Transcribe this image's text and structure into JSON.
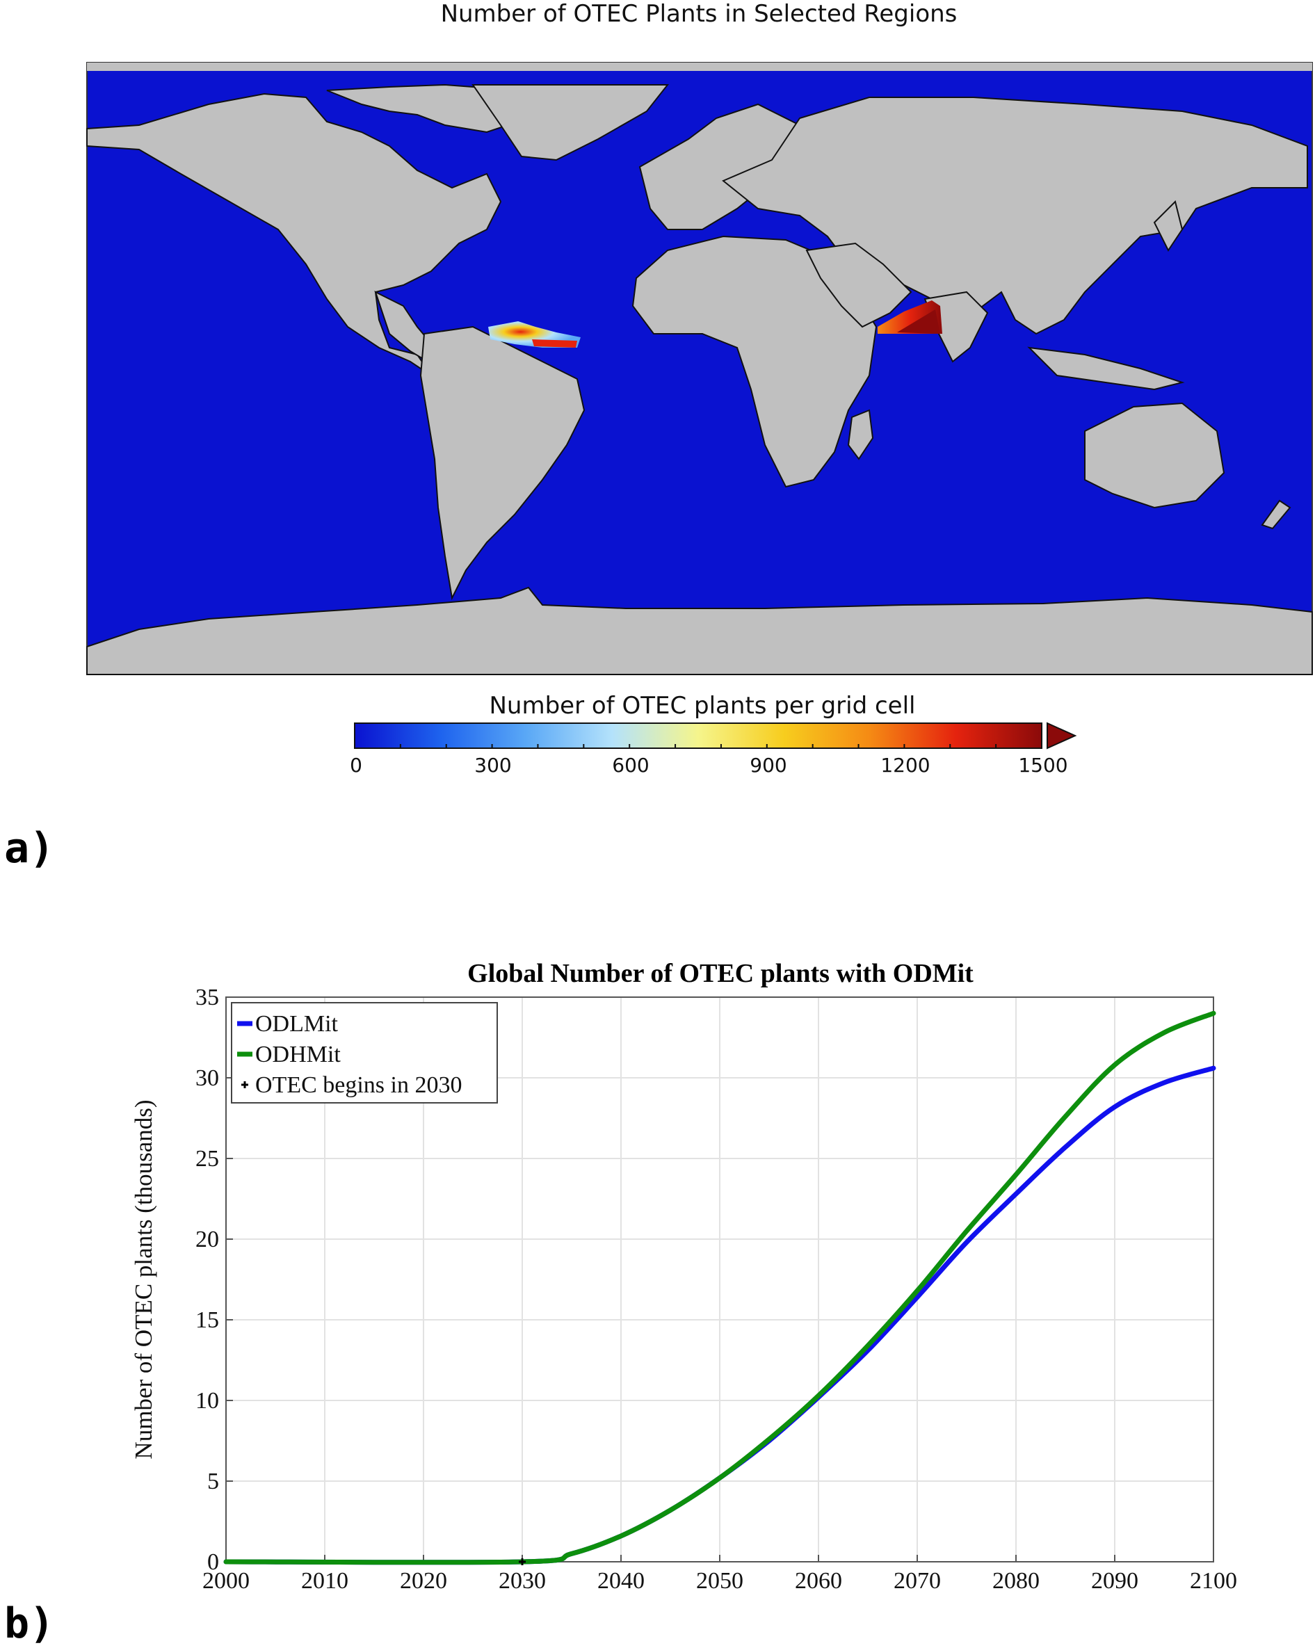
{
  "panel_a": {
    "label": "a)",
    "title": "Number of OTEC Plants in Selected Regions",
    "colors": {
      "ocean": "#0a12d0",
      "land": "#c0c0c0"
    },
    "colorbar": {
      "title": "Number of OTEC plants per grid cell",
      "ticks": [
        "0",
        "300",
        "600",
        "900",
        "1200",
        "1500"
      ],
      "range": [
        0,
        1500
      ],
      "colormap": [
        "#0a12d0",
        "#1e63ee",
        "#5aa8f6",
        "#b4e2fb",
        "#f5f58c",
        "#f7cd1e",
        "#f58a14",
        "#e5230e",
        "#8b0a0a"
      ]
    }
  },
  "panel_b": {
    "label": "b)",
    "chart_data": {
      "type": "line",
      "title": "Global Number of OTEC plants with ODMit",
      "xlabel": "",
      "ylabel": "Number of OTEC plants (thousands)",
      "xlim": [
        2000,
        2100
      ],
      "ylim": [
        0,
        35
      ],
      "xticks": [
        2000,
        2010,
        2020,
        2030,
        2040,
        2050,
        2060,
        2070,
        2080,
        2090,
        2100
      ],
      "yticks": [
        0,
        5,
        10,
        15,
        20,
        25,
        30,
        35
      ],
      "grid": true,
      "legend_position": "top-left",
      "series": [
        {
          "name": "ODLMit",
          "color": "#1010ee",
          "x": [
            2000,
            2030,
            2035,
            2040,
            2045,
            2050,
            2055,
            2060,
            2065,
            2070,
            2075,
            2080,
            2085,
            2090,
            2095,
            2100
          ],
          "y": [
            0,
            0,
            0.5,
            1.6,
            3.2,
            5.2,
            7.5,
            10.2,
            13.1,
            16.4,
            19.8,
            22.8,
            25.7,
            28.2,
            29.7,
            30.6
          ]
        },
        {
          "name": "ODHMit",
          "color": "#0d8f0d",
          "x": [
            2000,
            2030,
            2035,
            2040,
            2045,
            2050,
            2055,
            2060,
            2065,
            2070,
            2075,
            2080,
            2085,
            2090,
            2095,
            2100
          ],
          "y": [
            0,
            0,
            0.5,
            1.6,
            3.2,
            5.2,
            7.6,
            10.3,
            13.4,
            16.8,
            20.5,
            24.0,
            27.6,
            30.8,
            32.8,
            34.0
          ]
        }
      ],
      "markers": [
        {
          "name": "OTEC begins in 2030",
          "x": 2030,
          "y": 0,
          "color": "#000000"
        }
      ]
    }
  }
}
